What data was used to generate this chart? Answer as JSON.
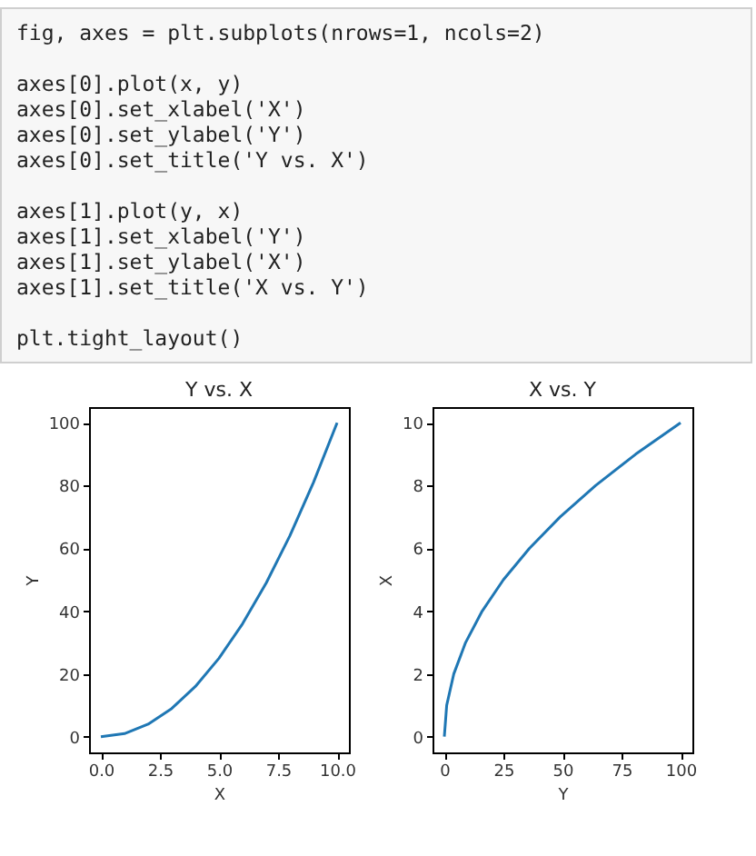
{
  "chart_data": [
    {
      "type": "line",
      "title": "Y vs. X",
      "xlabel": "X",
      "ylabel": "Y",
      "annotations": [
        "fig, axes = plt.subplots(nrows=1, ncols=2)\n\naxes[0].plot(x, y)\naxes[0].set_xlabel('X')\naxes[0].set_ylabel('Y')\naxes[0].set_title('Y vs. X')\n\naxes[1].plot(y, x)\naxes[1].set_xlabel('Y')\naxes[1].set_ylabel('X')\naxes[1].set_title('X vs. Y')\n\nplt.tight_layout()"
      ],
      "x": [
        0,
        1,
        2,
        3,
        4,
        5,
        6,
        7,
        8,
        9,
        10
      ],
      "series": [
        {
          "color": "#1f77b4",
          "values": [
            0,
            1,
            4,
            9,
            16,
            25,
            36,
            49,
            64,
            81,
            100
          ]
        }
      ],
      "xlim": [
        -0.5,
        10.5
      ],
      "ylim": [
        -5,
        105
      ],
      "xticks": [
        {
          "value": 0,
          "label": "0.0"
        },
        {
          "value": 2.5,
          "label": "2.5"
        },
        {
          "value": 5,
          "label": "5.0"
        },
        {
          "value": 7.5,
          "label": "7.5"
        },
        {
          "value": 10,
          "label": "10.0"
        }
      ],
      "yticks": [
        0,
        20,
        40,
        60,
        80,
        100
      ],
      "grid": false
    },
    {
      "type": "line",
      "title": "X vs. Y",
      "xlabel": "Y",
      "ylabel": "X",
      "x": [
        0,
        1,
        4,
        9,
        16,
        25,
        36,
        49,
        64,
        81,
        100
      ],
      "series": [
        {
          "color": "#1f77b4",
          "values": [
            0,
            1,
            2,
            3,
            4,
            5,
            6,
            7,
            8,
            9,
            10
          ]
        }
      ],
      "xlim": [
        -5,
        105
      ],
      "ylim": [
        -0.5,
        10.5
      ],
      "xticks": [
        0,
        25,
        50,
        75,
        100
      ],
      "yticks": [
        0,
        2,
        4,
        6,
        8,
        10
      ],
      "grid": false
    }
  ]
}
